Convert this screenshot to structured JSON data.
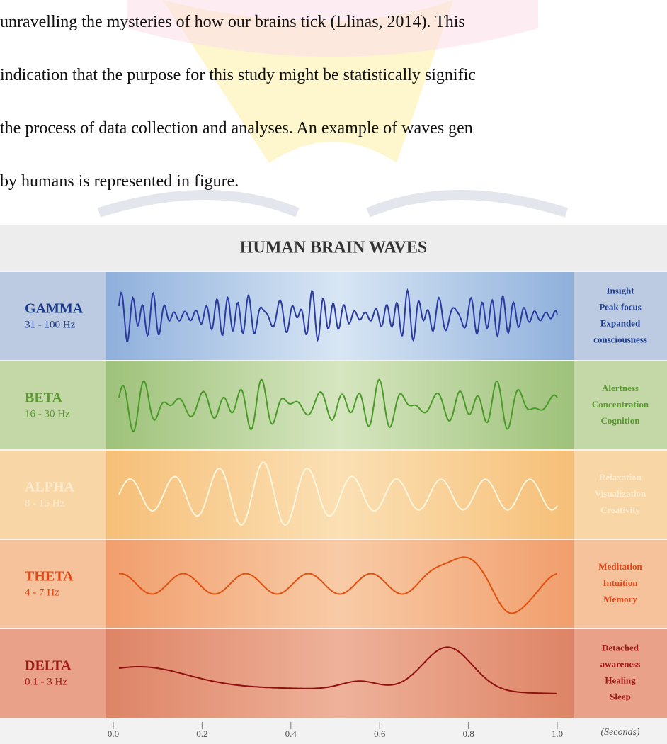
{
  "text_lines": [
    "unravelling the mysteries of how our brains tick (Llinas, 2014). This",
    "indication that the purpose for this study might be statistically signific",
    "the process of data collection and analyses.  An example of waves gen",
    "by humans is represented in figure."
  ],
  "figure": {
    "title": "HUMAN BRAIN WAVES",
    "bands": [
      {
        "name": "GAMMA",
        "range": "31 - 100 Hz",
        "effects": [
          "Insight",
          "Peak focus",
          "Expanded",
          "consciousness"
        ]
      },
      {
        "name": "BETA",
        "range": "16 - 30 Hz",
        "effects": [
          "Alertness",
          "Concentration",
          "Cognition"
        ]
      },
      {
        "name": "ALPHA",
        "range": "8 - 15 Hz",
        "effects": [
          "Relaxation",
          "Visualization",
          "Creativity"
        ]
      },
      {
        "name": "THETA",
        "range": "4 - 7 Hz",
        "effects": [
          "Meditation",
          "Intuition",
          "Memory"
        ]
      },
      {
        "name": "DELTA",
        "range": "0.1 - 3 Hz",
        "effects": [
          "Detached",
          "awareness",
          "Healing",
          "Sleep"
        ]
      }
    ],
    "axis_ticks": [
      "0.0",
      "0.2",
      "0.4",
      "0.6",
      "0.8",
      "1.0"
    ],
    "axis_unit": "(Seconds)"
  }
}
